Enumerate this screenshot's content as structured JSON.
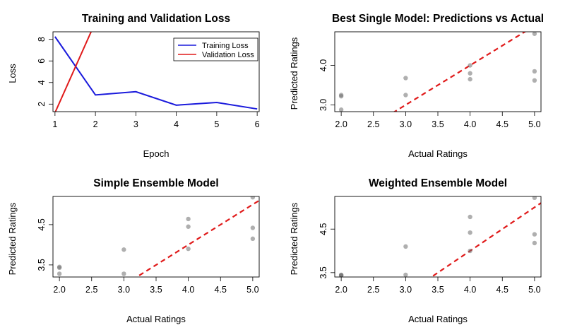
{
  "chart_data": [
    {
      "type": "line",
      "title": "Training and Validation Loss",
      "xlabel": "Epoch",
      "ylabel": "Loss",
      "xlim": [
        0.95,
        6.05
      ],
      "ylim": [
        1.3,
        8.7
      ],
      "xticks": [
        "1",
        "2",
        "3",
        "4",
        "5",
        "6"
      ],
      "yticks": [
        "2",
        "4",
        "6",
        "8"
      ],
      "x": [
        1,
        2,
        3,
        4,
        5,
        6
      ],
      "series": [
        {
          "name": "Training Loss",
          "color": "#1a1adc",
          "values": [
            8.25,
            2.85,
            3.15,
            1.9,
            2.15,
            1.55
          ]
        },
        {
          "name": "Validation Loss",
          "color": "#e01a1a",
          "values": [
            1.2,
            9.6,
            null,
            null,
            null,
            null
          ]
        }
      ],
      "legend": "top-right",
      "grid": false
    },
    {
      "type": "scatter",
      "title": "Best Single Model: Predictions vs Actual",
      "xlabel": "Actual Ratings",
      "ylabel": "Predicted Ratings",
      "xlim": [
        1.9,
        5.1
      ],
      "ylim": [
        2.83,
        4.85
      ],
      "xticks": [
        "2.0",
        "2.5",
        "3.0",
        "3.5",
        "4.0",
        "4.5",
        "5.0"
      ],
      "yticks": [
        "3.0",
        "4.0"
      ],
      "points": [
        [
          2,
          3.25
        ],
        [
          2,
          3.22
        ],
        [
          2,
          2.88
        ],
        [
          3,
          3.68
        ],
        [
          3,
          3.25
        ],
        [
          4,
          4.0
        ],
        [
          4,
          3.8
        ],
        [
          4,
          3.65
        ],
        [
          5,
          4.8
        ],
        [
          5,
          3.85
        ],
        [
          5,
          3.62
        ]
      ],
      "reference_line": {
        "from": [
          1.9,
          1.9
        ],
        "to": [
          5.1,
          5.1
        ],
        "color": "#e01a1a",
        "style": "dashed"
      },
      "grid": false
    },
    {
      "type": "scatter",
      "title": "Simple Ensemble Model",
      "xlabel": "Actual Ratings",
      "ylabel": "Predicted Ratings",
      "xlim": [
        1.9,
        5.1
      ],
      "ylim": [
        3.2,
        5.2
      ],
      "xticks": [
        "2.0",
        "2.5",
        "3.0",
        "3.5",
        "4.0",
        "4.5",
        "5.0"
      ],
      "yticks": [
        "3.5",
        "4.5"
      ],
      "points": [
        [
          2,
          3.45
        ],
        [
          2,
          3.43
        ],
        [
          2,
          3.28
        ],
        [
          3,
          3.88
        ],
        [
          3,
          3.28
        ],
        [
          4,
          4.64
        ],
        [
          4,
          4.45
        ],
        [
          4,
          3.9
        ],
        [
          5,
          5.18
        ],
        [
          5,
          4.42
        ],
        [
          5,
          4.15
        ]
      ],
      "reference_line": {
        "from": [
          1.9,
          1.9
        ],
        "to": [
          5.1,
          5.1
        ],
        "color": "#e01a1a",
        "style": "dashed"
      },
      "grid": false
    },
    {
      "type": "scatter",
      "title": "Weighted Ensemble Model",
      "xlabel": "Actual Ratings",
      "ylabel": "Predicted Ratings",
      "xlim": [
        1.9,
        5.1
      ],
      "ylim": [
        3.4,
        5.25
      ],
      "xticks": [
        "2.0",
        "2.5",
        "3.0",
        "3.5",
        "4.0",
        "4.5",
        "5.0"
      ],
      "yticks": [
        "3.5",
        "4.5"
      ],
      "points": [
        [
          2,
          3.45
        ],
        [
          2,
          3.44
        ],
        [
          2,
          3.43
        ],
        [
          3,
          4.1
        ],
        [
          3,
          3.45
        ],
        [
          4,
          4.78
        ],
        [
          4,
          4.42
        ],
        [
          4,
          4.0
        ],
        [
          5,
          5.22
        ],
        [
          5,
          4.38
        ],
        [
          5,
          4.18
        ]
      ],
      "reference_line": {
        "from": [
          1.9,
          1.9
        ],
        "to": [
          5.1,
          5.1
        ],
        "color": "#e01a1a",
        "style": "dashed"
      },
      "grid": false
    }
  ]
}
